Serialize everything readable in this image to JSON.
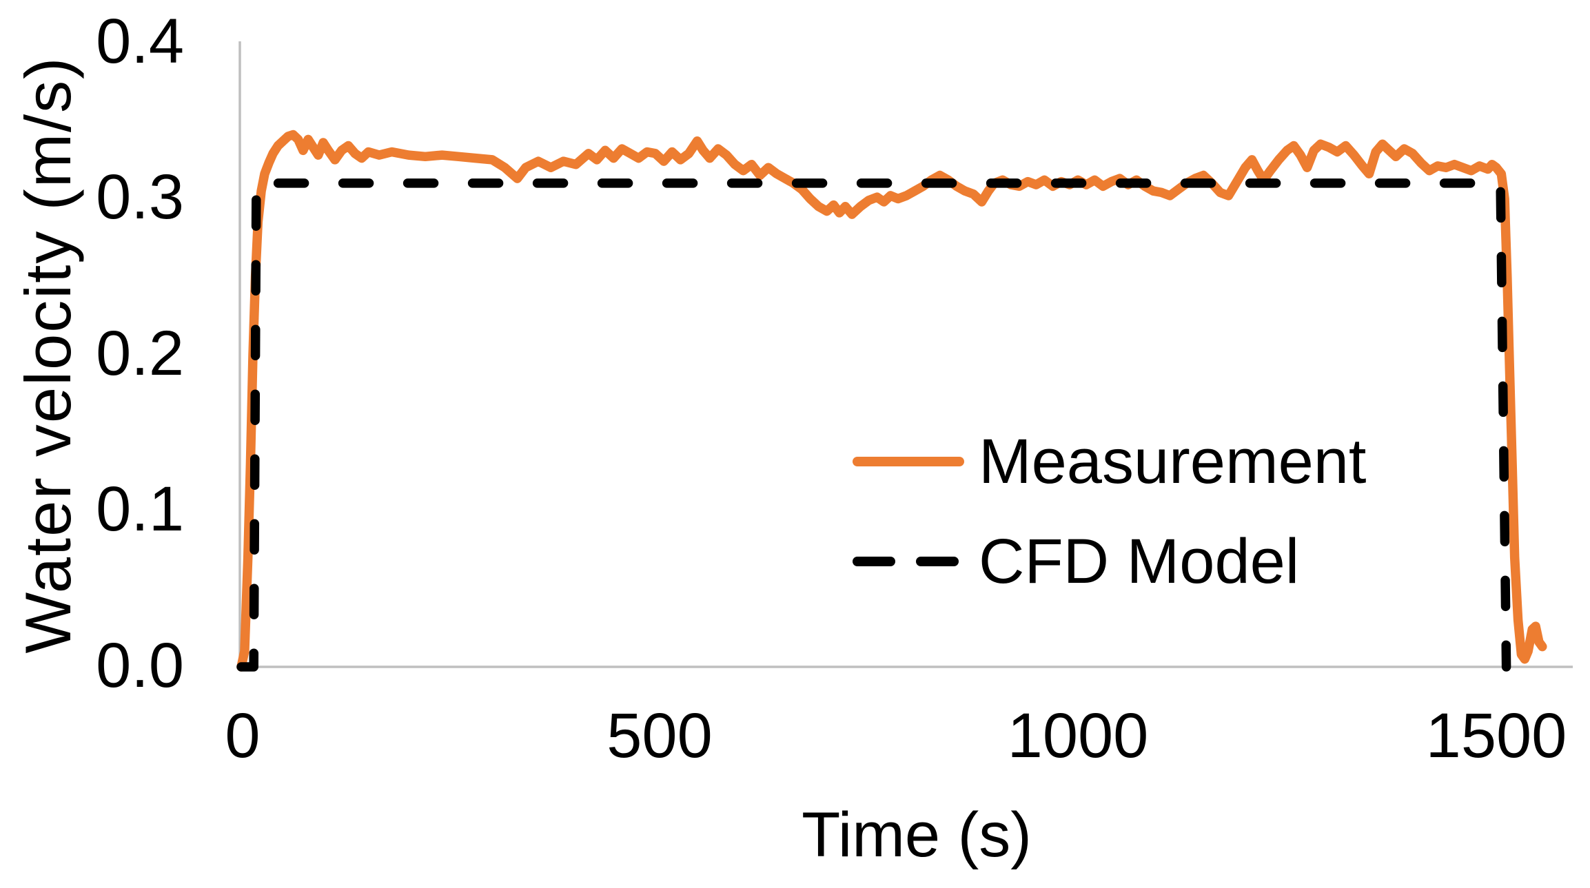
{
  "figure": {
    "background": "#ffffff"
  },
  "y_axis": {
    "title": "Water velocity (m/s)",
    "tick_labels": [
      "0.0",
      "0.1",
      "0.2",
      "0.3",
      "0.4"
    ]
  },
  "x_axis": {
    "title": "Time (s)",
    "tick_labels": [
      "0",
      "500",
      "1000",
      "1500"
    ]
  },
  "legend": {
    "items": [
      {
        "label": "Measurement",
        "color": "#ED7D31",
        "style": "solid"
      },
      {
        "label": "CFD Model",
        "color": "#000000",
        "style": "dashed"
      }
    ]
  },
  "colors": {
    "measurement": "#ED7D31",
    "cfd_model": "#000000",
    "axis_line": "#BFBFBF",
    "text": "#000000"
  },
  "chart_data": {
    "type": "line",
    "title": "",
    "xlabel": "Time (s)",
    "ylabel": "Water velocity (m/s)",
    "xlim": [
      0,
      1600
    ],
    "ylim": [
      0.0,
      0.4
    ],
    "x_ticks": [
      0,
      500,
      1000,
      1500
    ],
    "y_ticks": [
      0.0,
      0.1,
      0.2,
      0.3,
      0.4
    ],
    "grid": false,
    "legend_position": "center-right",
    "series": [
      {
        "name": "Measurement",
        "color": "#ED7D31",
        "line_style": "solid",
        "line_width": 13.5,
        "points": [
          [
            0,
            0.0
          ],
          [
            4,
            0.01
          ],
          [
            8,
            0.07
          ],
          [
            11,
            0.13
          ],
          [
            14,
            0.2
          ],
          [
            17,
            0.25
          ],
          [
            20,
            0.285
          ],
          [
            24,
            0.305
          ],
          [
            28,
            0.316
          ],
          [
            33,
            0.323
          ],
          [
            38,
            0.329
          ],
          [
            44,
            0.334
          ],
          [
            50,
            0.337
          ],
          [
            56,
            0.34
          ],
          [
            62,
            0.341
          ],
          [
            68,
            0.338
          ],
          [
            74,
            0.331
          ],
          [
            80,
            0.338
          ],
          [
            86,
            0.333
          ],
          [
            92,
            0.328
          ],
          [
            98,
            0.336
          ],
          [
            104,
            0.331
          ],
          [
            112,
            0.325
          ],
          [
            120,
            0.331
          ],
          [
            128,
            0.334
          ],
          [
            136,
            0.329
          ],
          [
            144,
            0.326
          ],
          [
            152,
            0.33
          ],
          [
            165,
            0.328
          ],
          [
            180,
            0.33
          ],
          [
            200,
            0.328
          ],
          [
            220,
            0.327
          ],
          [
            240,
            0.328
          ],
          [
            260,
            0.327
          ],
          [
            280,
            0.326
          ],
          [
            300,
            0.325
          ],
          [
            315,
            0.32
          ],
          [
            330,
            0.313
          ],
          [
            340,
            0.32
          ],
          [
            355,
            0.324
          ],
          [
            370,
            0.32
          ],
          [
            385,
            0.324
          ],
          [
            400,
            0.322
          ],
          [
            415,
            0.329
          ],
          [
            425,
            0.325
          ],
          [
            435,
            0.331
          ],
          [
            445,
            0.326
          ],
          [
            455,
            0.332
          ],
          [
            465,
            0.329
          ],
          [
            475,
            0.326
          ],
          [
            485,
            0.33
          ],
          [
            495,
            0.329
          ],
          [
            505,
            0.324
          ],
          [
            515,
            0.33
          ],
          [
            525,
            0.325
          ],
          [
            535,
            0.329
          ],
          [
            545,
            0.337
          ],
          [
            552,
            0.331
          ],
          [
            560,
            0.326
          ],
          [
            570,
            0.332
          ],
          [
            580,
            0.328
          ],
          [
            590,
            0.322
          ],
          [
            600,
            0.318
          ],
          [
            610,
            0.322
          ],
          [
            620,
            0.315
          ],
          [
            630,
            0.32
          ],
          [
            640,
            0.316
          ],
          [
            650,
            0.313
          ],
          [
            660,
            0.31
          ],
          [
            670,
            0.306
          ],
          [
            680,
            0.3
          ],
          [
            690,
            0.295
          ],
          [
            700,
            0.292
          ],
          [
            708,
            0.296
          ],
          [
            715,
            0.291
          ],
          [
            722,
            0.295
          ],
          [
            730,
            0.29
          ],
          [
            740,
            0.295
          ],
          [
            750,
            0.299
          ],
          [
            760,
            0.301
          ],
          [
            768,
            0.298
          ],
          [
            776,
            0.302
          ],
          [
            785,
            0.3
          ],
          [
            795,
            0.302
          ],
          [
            805,
            0.305
          ],
          [
            815,
            0.308
          ],
          [
            825,
            0.312
          ],
          [
            835,
            0.315
          ],
          [
            845,
            0.312
          ],
          [
            855,
            0.308
          ],
          [
            865,
            0.305
          ],
          [
            875,
            0.303
          ],
          [
            885,
            0.298
          ],
          [
            893,
            0.305
          ],
          [
            900,
            0.31
          ],
          [
            910,
            0.312
          ],
          [
            920,
            0.309
          ],
          [
            930,
            0.308
          ],
          [
            940,
            0.311
          ],
          [
            950,
            0.309
          ],
          [
            960,
            0.312
          ],
          [
            970,
            0.308
          ],
          [
            980,
            0.311
          ],
          [
            990,
            0.309
          ],
          [
            1000,
            0.312
          ],
          [
            1010,
            0.309
          ],
          [
            1020,
            0.312
          ],
          [
            1030,
            0.308
          ],
          [
            1040,
            0.311
          ],
          [
            1050,
            0.313
          ],
          [
            1060,
            0.309
          ],
          [
            1070,
            0.312
          ],
          [
            1080,
            0.308
          ],
          [
            1090,
            0.305
          ],
          [
            1100,
            0.304
          ],
          [
            1110,
            0.302
          ],
          [
            1120,
            0.306
          ],
          [
            1130,
            0.31
          ],
          [
            1140,
            0.313
          ],
          [
            1150,
            0.315
          ],
          [
            1160,
            0.31
          ],
          [
            1170,
            0.304
          ],
          [
            1180,
            0.302
          ],
          [
            1190,
            0.311
          ],
          [
            1200,
            0.32
          ],
          [
            1208,
            0.325
          ],
          [
            1215,
            0.318
          ],
          [
            1222,
            0.312
          ],
          [
            1230,
            0.318
          ],
          [
            1240,
            0.325
          ],
          [
            1250,
            0.331
          ],
          [
            1258,
            0.334
          ],
          [
            1266,
            0.328
          ],
          [
            1274,
            0.32
          ],
          [
            1282,
            0.331
          ],
          [
            1290,
            0.335
          ],
          [
            1300,
            0.333
          ],
          [
            1310,
            0.33
          ],
          [
            1320,
            0.334
          ],
          [
            1330,
            0.328
          ],
          [
            1340,
            0.321
          ],
          [
            1348,
            0.316
          ],
          [
            1356,
            0.33
          ],
          [
            1364,
            0.335
          ],
          [
            1372,
            0.331
          ],
          [
            1380,
            0.327
          ],
          [
            1390,
            0.332
          ],
          [
            1400,
            0.329
          ],
          [
            1410,
            0.323
          ],
          [
            1420,
            0.318
          ],
          [
            1430,
            0.321
          ],
          [
            1440,
            0.32
          ],
          [
            1450,
            0.322
          ],
          [
            1460,
            0.32
          ],
          [
            1470,
            0.318
          ],
          [
            1480,
            0.321
          ],
          [
            1490,
            0.319
          ],
          [
            1495,
            0.322
          ],
          [
            1500,
            0.32
          ],
          [
            1506,
            0.316
          ],
          [
            1510,
            0.3
          ],
          [
            1513,
            0.25
          ],
          [
            1516,
            0.19
          ],
          [
            1519,
            0.13
          ],
          [
            1522,
            0.07
          ],
          [
            1526,
            0.03
          ],
          [
            1530,
            0.008
          ],
          [
            1534,
            0.005
          ],
          [
            1538,
            0.01
          ],
          [
            1543,
            0.024
          ],
          [
            1547,
            0.026
          ],
          [
            1551,
            0.016
          ],
          [
            1555,
            0.013
          ]
        ]
      },
      {
        "name": "CFD Model",
        "color": "#000000",
        "line_style": "dashed",
        "line_width": 13.5,
        "points": [
          [
            0,
            0.0
          ],
          [
            15,
            0.0
          ],
          [
            18,
            0.31
          ],
          [
            1505,
            0.31
          ],
          [
            1512,
            0.0
          ]
        ]
      }
    ]
  }
}
